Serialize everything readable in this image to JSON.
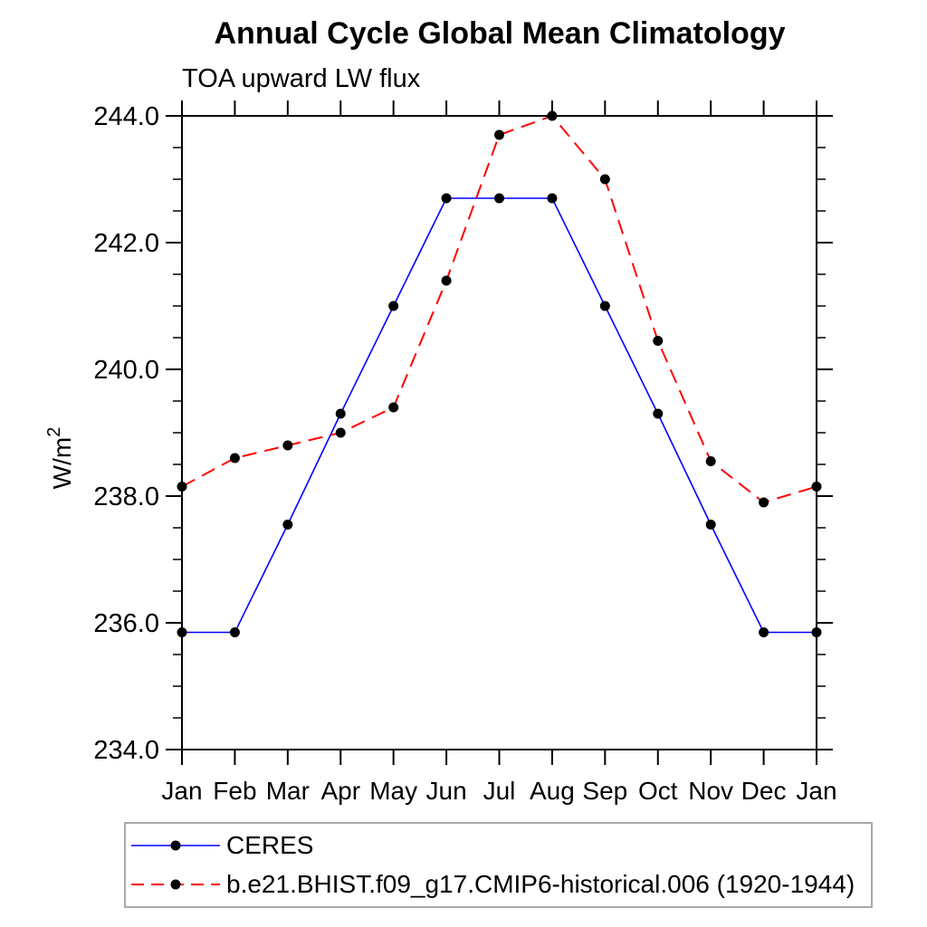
{
  "page": {
    "background": "#ffffff",
    "text_color": "#000000",
    "frame_color": "#000000",
    "legend_border_color": "#a8a8a8"
  },
  "chart_data": {
    "type": "line",
    "title": "Annual Cycle Global Mean Climatology",
    "subtitle": "TOA upward LW flux",
    "ylabel": "W/m²",
    "xlabel": "",
    "categories": [
      "Jan",
      "Feb",
      "Mar",
      "Apr",
      "May",
      "Jun",
      "Jul",
      "Aug",
      "Sep",
      "Oct",
      "Nov",
      "Dec",
      "Jan"
    ],
    "ylim": [
      234.0,
      244.0
    ],
    "y_major_ticks": [
      234.0,
      236.0,
      238.0,
      240.0,
      242.0,
      244.0
    ],
    "y_minor_step": 0.5,
    "y_tick_decimals": 1,
    "grid": false,
    "legend_position": "bottom-left",
    "marker": "filled-circle",
    "marker_color": "#000000",
    "series": [
      {
        "name": "CERES",
        "color": "#0000ff",
        "line_style": "solid",
        "values": [
          235.85,
          235.85,
          237.55,
          239.3,
          241.0,
          242.7,
          242.7,
          242.7,
          241.0,
          239.3,
          237.55,
          235.85,
          235.85
        ]
      },
      {
        "name": "b.e21.BHIST.f09_g17.CMIP6-historical.006 (1920-1944)",
        "color": "#ff0000",
        "line_style": "dashed",
        "values": [
          238.15,
          238.6,
          238.8,
          239.0,
          239.4,
          241.4,
          243.7,
          244.0,
          243.0,
          240.45,
          238.55,
          237.9,
          238.15
        ]
      }
    ]
  }
}
